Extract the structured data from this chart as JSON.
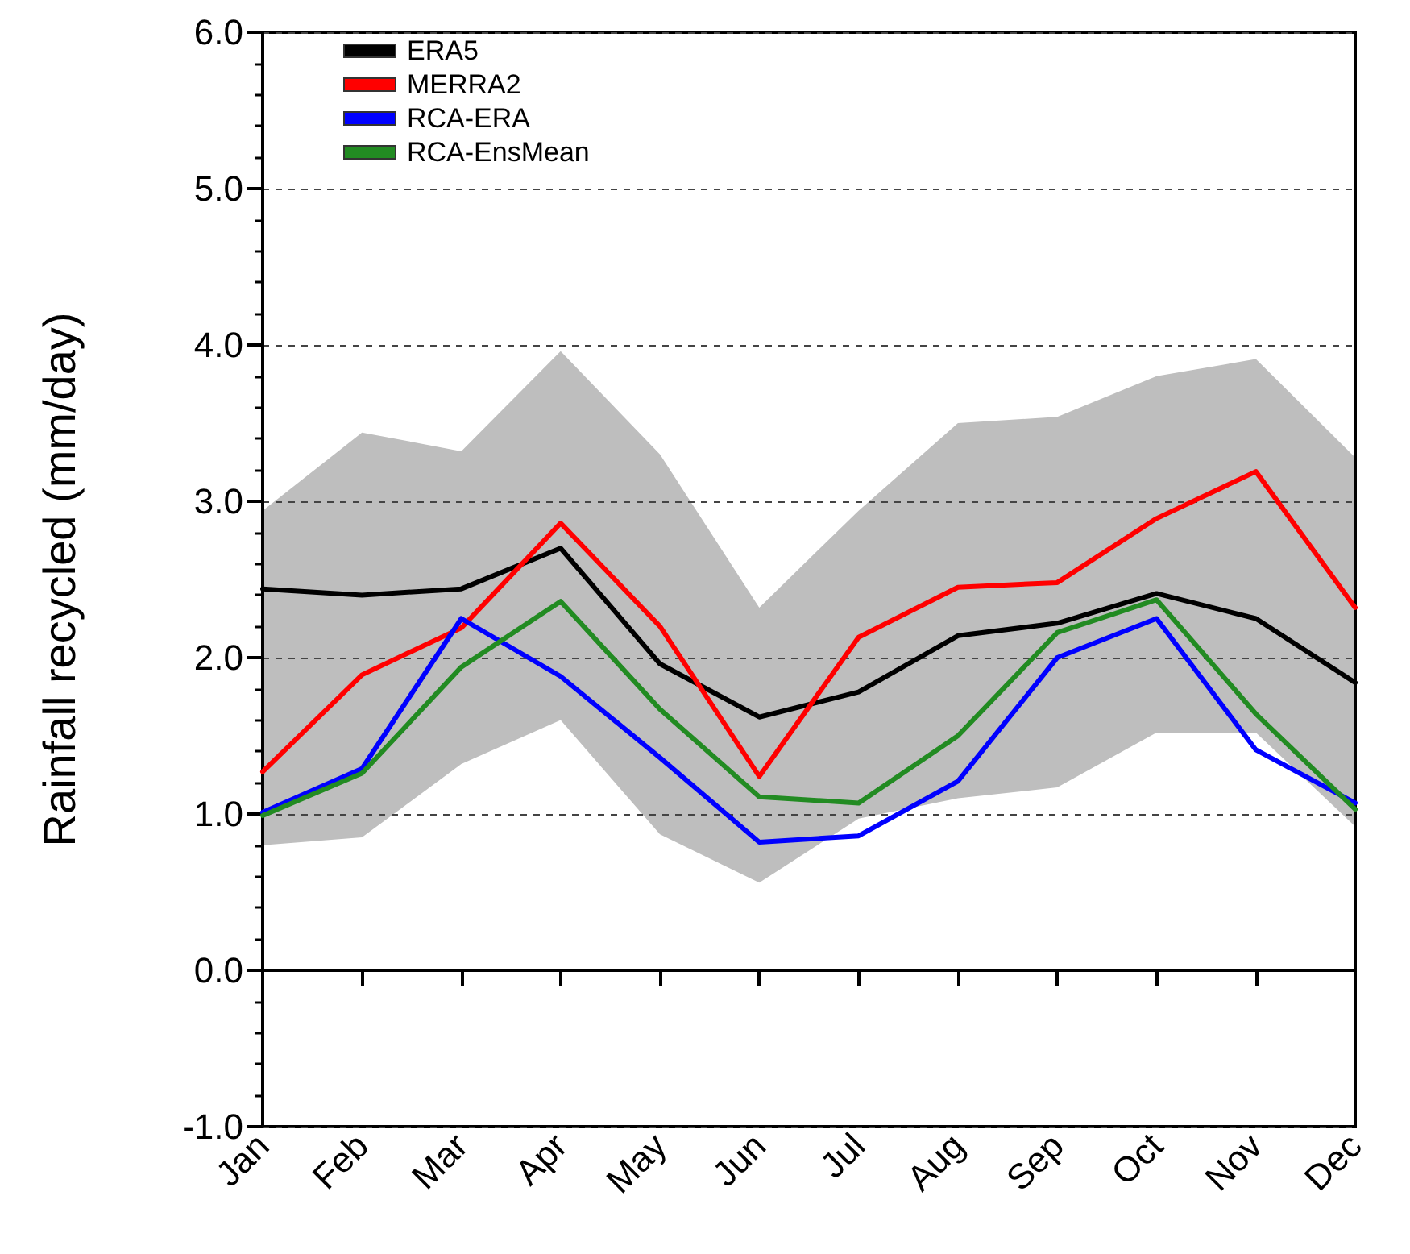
{
  "chart_data": {
    "type": "line",
    "ylabel": "Rainfall recycled (mm/day)",
    "categories": [
      "Jan",
      "Feb",
      "Mar",
      "Apr",
      "May",
      "Jun",
      "Jul",
      "Aug",
      "Sep",
      "Oct",
      "Nov",
      "Dec"
    ],
    "series": [
      {
        "name": "ERA5",
        "color": "#000000",
        "values": [
          2.44,
          2.4,
          2.44,
          2.7,
          1.96,
          1.62,
          1.78,
          2.14,
          2.22,
          2.41,
          2.25,
          1.84
        ]
      },
      {
        "name": "MERRA2",
        "color": "#ff0000",
        "values": [
          1.27,
          1.89,
          2.19,
          2.86,
          2.2,
          1.24,
          2.13,
          2.45,
          2.48,
          2.89,
          3.19,
          2.32
        ]
      },
      {
        "name": "RCA-ERA",
        "color": "#0000ff",
        "values": [
          1.01,
          1.29,
          2.25,
          1.88,
          1.36,
          0.82,
          0.86,
          1.21,
          2.0,
          2.25,
          1.41,
          1.07
        ]
      },
      {
        "name": "RCA-EnsMean",
        "color": "#228b22",
        "values": [
          0.99,
          1.26,
          1.94,
          2.36,
          1.67,
          1.11,
          1.07,
          1.5,
          2.16,
          2.37,
          1.64,
          1.03
        ],
        "lower": [
          0.8,
          0.85,
          1.32,
          1.6,
          0.87,
          0.56,
          0.97,
          1.1,
          1.17,
          1.52,
          1.52,
          0.92
        ],
        "upper": [
          2.94,
          3.44,
          3.32,
          3.96,
          3.3,
          2.32,
          2.94,
          3.5,
          3.54,
          3.8,
          3.91,
          3.28
        ]
      }
    ],
    "ylim": [
      -1,
      6
    ],
    "yticks": [
      {
        "value": -1,
        "label": "-1.0"
      },
      {
        "value": -0.8,
        "label": null
      },
      {
        "value": -0.6,
        "label": null
      },
      {
        "value": -0.4,
        "label": null
      },
      {
        "value": -0.2,
        "label": null
      },
      {
        "value": 0,
        "label": "0.0"
      },
      {
        "value": 0.2,
        "label": null
      },
      {
        "value": 0.4,
        "label": null
      },
      {
        "value": 0.6,
        "label": null
      },
      {
        "value": 0.8,
        "label": null
      },
      {
        "value": 1,
        "label": "1.0"
      },
      {
        "value": 1.2,
        "label": null
      },
      {
        "value": 1.4,
        "label": null
      },
      {
        "value": 1.6,
        "label": null
      },
      {
        "value": 1.8,
        "label": null
      },
      {
        "value": 2,
        "label": "2.0"
      },
      {
        "value": 2.2,
        "label": null
      },
      {
        "value": 2.4,
        "label": null
      },
      {
        "value": 2.6,
        "label": null
      },
      {
        "value": 2.8,
        "label": null
      },
      {
        "value": 3,
        "label": "3.0"
      },
      {
        "value": 3.2,
        "label": null
      },
      {
        "value": 3.4,
        "label": null
      },
      {
        "value": 3.6,
        "label": null
      },
      {
        "value": 3.8,
        "label": null
      },
      {
        "value": 4,
        "label": "4.0"
      },
      {
        "value": 4.2,
        "label": null
      },
      {
        "value": 4.4,
        "label": null
      },
      {
        "value": 4.6,
        "label": null
      },
      {
        "value": 4.8,
        "label": null
      },
      {
        "value": 5,
        "label": "5.0"
      },
      {
        "value": 5.2,
        "label": null
      },
      {
        "value": 5.4,
        "label": null
      },
      {
        "value": 5.6,
        "label": null
      },
      {
        "value": 5.8,
        "label": null
      },
      {
        "value": 6,
        "label": "6.0"
      }
    ],
    "grid": "y",
    "legend": "top left",
    "marker": "none",
    "line_style": "solid"
  }
}
